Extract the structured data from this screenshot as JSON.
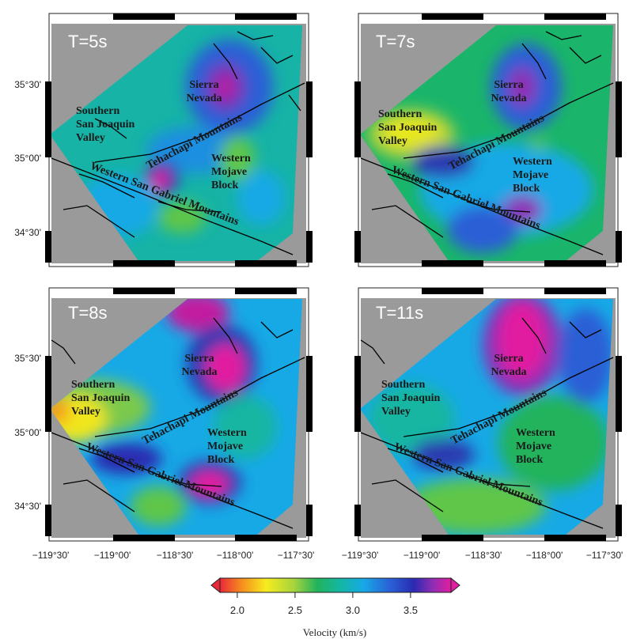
{
  "panels": [
    {
      "title": "T=5s"
    },
    {
      "title": "T=7s"
    },
    {
      "title": "T=8s"
    },
    {
      "title": "T=11s"
    }
  ],
  "regions": {
    "sierra": [
      "Sierra",
      "Nevada"
    ],
    "joaquin": [
      "Southern",
      "San Joaquin",
      "Valley"
    ],
    "mojave": [
      "Western",
      "Mojave",
      "Block"
    ]
  },
  "mountains": {
    "tehachapi": "Tehachapi Mountains",
    "gabriel": "Western San Gabriel Mountains"
  },
  "axes": {
    "x_ticks": [
      "−119°30'",
      "−119°00'",
      "−118°30'",
      "−118°00'",
      "−117°30'"
    ],
    "y_ticks": [
      "35°30'",
      "35°00'",
      "34°30'"
    ]
  },
  "colorbar": {
    "label": "Velocity (km/s)",
    "ticks": [
      "2.0",
      "2.5",
      "3.0",
      "3.5"
    ],
    "tick_values": [
      2.0,
      2.5,
      3.0,
      3.5
    ],
    "min": 1.85,
    "max": 3.85,
    "colors": [
      "#e8283a",
      "#f58a1f",
      "#f6ec1e",
      "#a7d43c",
      "#22b35c",
      "#14b6a2",
      "#17a9e6",
      "#2a5fd6",
      "#2a2ab0",
      "#8f2db5",
      "#e21ea0"
    ]
  },
  "colors": {
    "land_gray": "#9a9a9a",
    "fault": "#000000"
  }
}
